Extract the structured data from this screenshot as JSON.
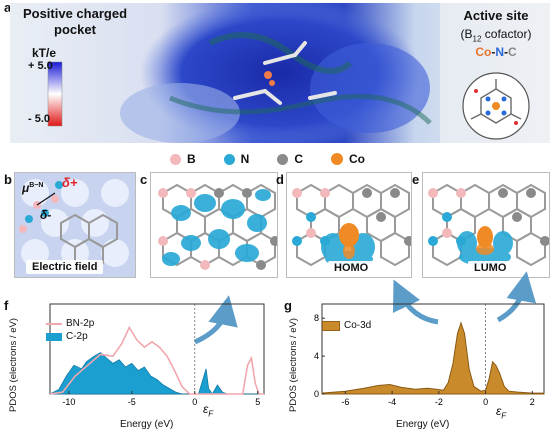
{
  "panel_a": {
    "label": "a",
    "title_line1": "Positive charged",
    "title_line2": "pocket",
    "colorbar_title": "kT/e",
    "colorbar_max": "+ 5.0",
    "colorbar_min": "- 5.0",
    "active_title": "Active site",
    "cofactor_pre": "(B",
    "cofactor_sub": "12",
    "cofactor_post": " cofactor)",
    "co": "Co",
    "dash1": "-",
    "n": "N",
    "dash2": "-",
    "c": "C"
  },
  "legend": {
    "b": "B",
    "n": "N",
    "c": "C",
    "co": "Co",
    "colors": {
      "b": "#f2b8bc",
      "n": "#2aa9d6",
      "c": "#8a8a8a",
      "co": "#f08a24"
    }
  },
  "panel_b": {
    "label": "b",
    "mu": "μ",
    "mu_sup": "B−N",
    "delta_plus": "δ+",
    "delta_minus": "δ-",
    "caption": "Electric field"
  },
  "panel_c": {
    "label": "c"
  },
  "panel_d": {
    "label": "d",
    "caption": "HOMO"
  },
  "panel_e": {
    "label": "e",
    "caption": "LUMO"
  },
  "panel_f": {
    "label": "f",
    "ylabel": "PDOS (electrons / eV)",
    "xlabel": "Energy (eV)",
    "xticks": [
      "-10",
      "-5",
      "0",
      "5"
    ],
    "fermi": "ε",
    "fermi_sub": "F",
    "legend": [
      {
        "name": "BN-2p",
        "color": "#f1a7ae"
      },
      {
        "name": "C-2p",
        "color": "#1a9fd0"
      }
    ]
  },
  "panel_g": {
    "label": "g",
    "ylabel": "PDOS (electrons / eV)",
    "xlabel": "Energy (eV)",
    "xticks": [
      "-6",
      "-4",
      "-2",
      "0",
      "2"
    ],
    "yticks": [
      "0",
      "4",
      "8"
    ],
    "fermi": "ε",
    "fermi_sub": "F",
    "legend": [
      {
        "name": "Co-3d",
        "color": "#c98a2c"
      }
    ]
  }
}
